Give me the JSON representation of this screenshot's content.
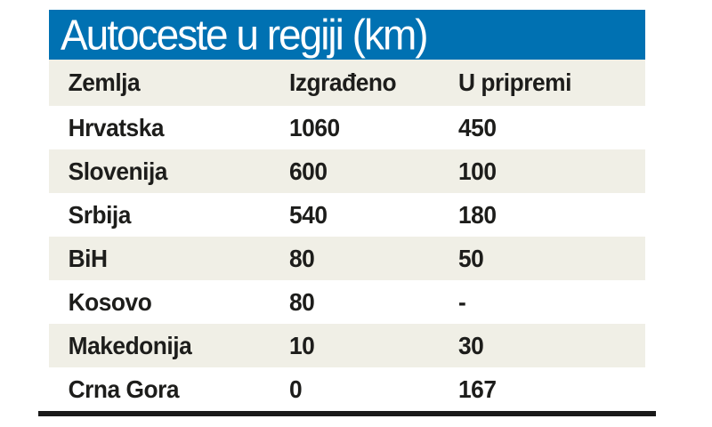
{
  "title": "Autoceste u regiji (km)",
  "colors": {
    "title_bar_blue": "#0071b2",
    "row_stripe": "#f0efe6",
    "text": "#1d1d1b",
    "title_text": "#ffffff",
    "bottom_rule": "#1a1a1a"
  },
  "table": {
    "columns": [
      "Zemlja",
      "Izgrađeno",
      "U pripremi"
    ],
    "rows": [
      {
        "country": "Hrvatska",
        "built": "1060",
        "planned": "450"
      },
      {
        "country": "Slovenija",
        "built": "600",
        "planned": "100"
      },
      {
        "country": "Srbija",
        "built": "540",
        "planned": "180"
      },
      {
        "country": "BiH",
        "built": "80",
        "planned": "50"
      },
      {
        "country": "Kosovo",
        "built": "80",
        "planned": "-"
      },
      {
        "country": "Makedonija",
        "built": "10",
        "planned": "30"
      },
      {
        "country": "Crna Gora",
        "built": "0",
        "planned": "167"
      }
    ]
  },
  "chart_data": {
    "type": "table",
    "title": "Autoceste u regiji (km)",
    "columns": [
      "Zemlja",
      "Izgrađeno",
      "U pripremi"
    ],
    "rows": [
      [
        "Hrvatska",
        1060,
        450
      ],
      [
        "Slovenija",
        600,
        100
      ],
      [
        "Srbija",
        540,
        180
      ],
      [
        "BiH",
        80,
        50
      ],
      [
        "Kosovo",
        80,
        "-"
      ],
      [
        "Makedonija",
        10,
        30
      ],
      [
        "Crna Gora",
        0,
        167
      ]
    ],
    "units": "km",
    "notes": "Dash indicates no value shown for Kosovo in 'U pripremi' column"
  }
}
